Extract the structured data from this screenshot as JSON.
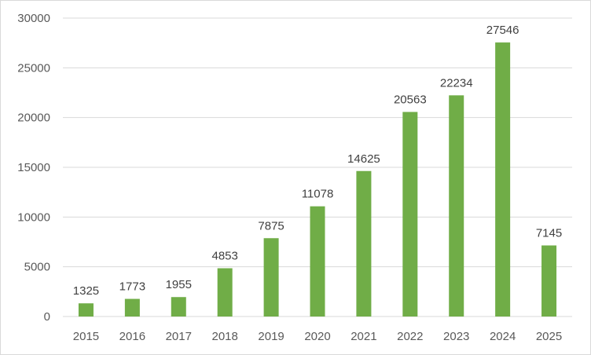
{
  "chart_data": {
    "type": "bar",
    "categories": [
      "2015",
      "2016",
      "2017",
      "2018",
      "2019",
      "2020",
      "2021",
      "2022",
      "2023",
      "2024",
      "2025"
    ],
    "values": [
      1325,
      1773,
      1955,
      4853,
      7875,
      11078,
      14625,
      20563,
      22234,
      27546,
      7145
    ],
    "data_labels": [
      "1325",
      "1773",
      "1955",
      "4853",
      "7875",
      "11078",
      "14625",
      "20563",
      "22234",
      "27546",
      "7145"
    ],
    "y_ticks": [
      "0",
      "5000",
      "10000",
      "15000",
      "20000",
      "25000",
      "30000"
    ],
    "ylim": [
      0,
      30000
    ],
    "grid": true,
    "bar_color": "#70ad47",
    "grid_color": "#d9d9d9",
    "title": "",
    "xlabel": "",
    "ylabel": ""
  }
}
